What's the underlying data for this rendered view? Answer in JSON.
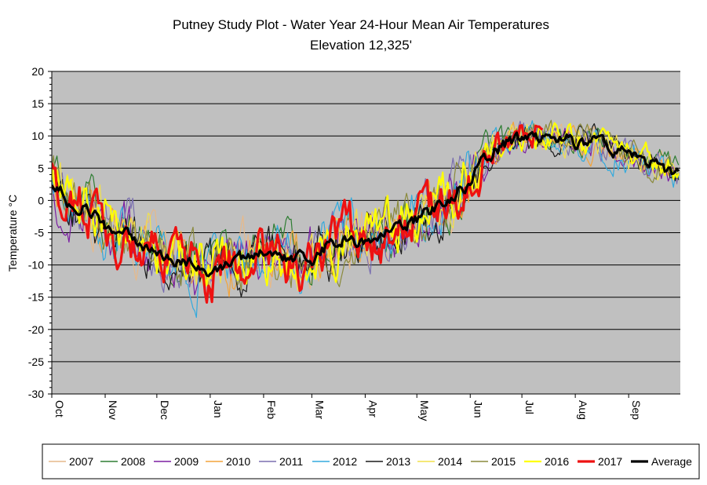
{
  "chart_data": {
    "type": "line",
    "title": "Putney Study Plot - Water Year 24-Hour Mean Air Temperatures",
    "subtitle": "Elevation 12,325'",
    "xlabel": "",
    "ylabel": "Temperature °C",
    "ylim": [
      -30,
      20
    ],
    "yticks": [
      "20",
      "15",
      "10",
      "5",
      "0",
      "-5",
      "-10",
      "-15",
      "-20",
      "-25",
      "-30"
    ],
    "x_axis": "day of water year (Oct 1 – Sep 30)",
    "month_labels": [
      "Oct",
      "Nov",
      "Dec",
      "Jan",
      "Feb",
      "Mar",
      "Apr",
      "May",
      "Jun",
      "Jul",
      "Aug",
      "Sep"
    ],
    "month_start_days": [
      0,
      31,
      61,
      92,
      123,
      151,
      182,
      212,
      243,
      273,
      304,
      335
    ],
    "days_in_year": 365,
    "grid": true,
    "legend": "bottom",
    "plot_background": "#c0c0c0",
    "average_curve": [
      [
        0,
        3
      ],
      [
        10,
        0
      ],
      [
        20,
        -1
      ],
      [
        31,
        -4
      ],
      [
        40,
        -5
      ],
      [
        50,
        -6
      ],
      [
        61,
        -8
      ],
      [
        70,
        -9
      ],
      [
        80,
        -10
      ],
      [
        92,
        -11
      ],
      [
        100,
        -10
      ],
      [
        110,
        -9
      ],
      [
        123,
        -8
      ],
      [
        135,
        -9
      ],
      [
        151,
        -9
      ],
      [
        160,
        -7
      ],
      [
        170,
        -6
      ],
      [
        182,
        -6
      ],
      [
        195,
        -5
      ],
      [
        212,
        -3
      ],
      [
        225,
        -1
      ],
      [
        235,
        1
      ],
      [
        243,
        3
      ],
      [
        250,
        6
      ],
      [
        258,
        8
      ],
      [
        265,
        9
      ],
      [
        273,
        10
      ],
      [
        285,
        10
      ],
      [
        295,
        10
      ],
      [
        304,
        9
      ],
      [
        315,
        9
      ],
      [
        325,
        8
      ],
      [
        335,
        7
      ],
      [
        345,
        6
      ],
      [
        355,
        5
      ],
      [
        364,
        4
      ]
    ],
    "series": [
      {
        "name": "2007",
        "color": "#e6b98a",
        "width": 1.2
      },
      {
        "name": "2008",
        "color": "#2e7d32",
        "width": 1.2
      },
      {
        "name": "2009",
        "color": "#7b1fa2",
        "width": 1.2
      },
      {
        "name": "2010",
        "color": "#f4a43a",
        "width": 1.2
      },
      {
        "name": "2011",
        "color": "#7a6fb0",
        "width": 1.2
      },
      {
        "name": "2012",
        "color": "#33aadd",
        "width": 1.2
      },
      {
        "name": "2013",
        "color": "#1a1a1a",
        "width": 1.2
      },
      {
        "name": "2014",
        "color": "#f2e04a",
        "width": 1.2
      },
      {
        "name": "2015",
        "color": "#8a8a3c",
        "width": 1.2
      },
      {
        "name": "2016",
        "color": "#ffff00",
        "width": 2.2
      },
      {
        "name": "2017",
        "color": "#ee1111",
        "width": 3.2
      },
      {
        "name": "Average",
        "color": "#000000",
        "width": 3.2
      }
    ]
  }
}
